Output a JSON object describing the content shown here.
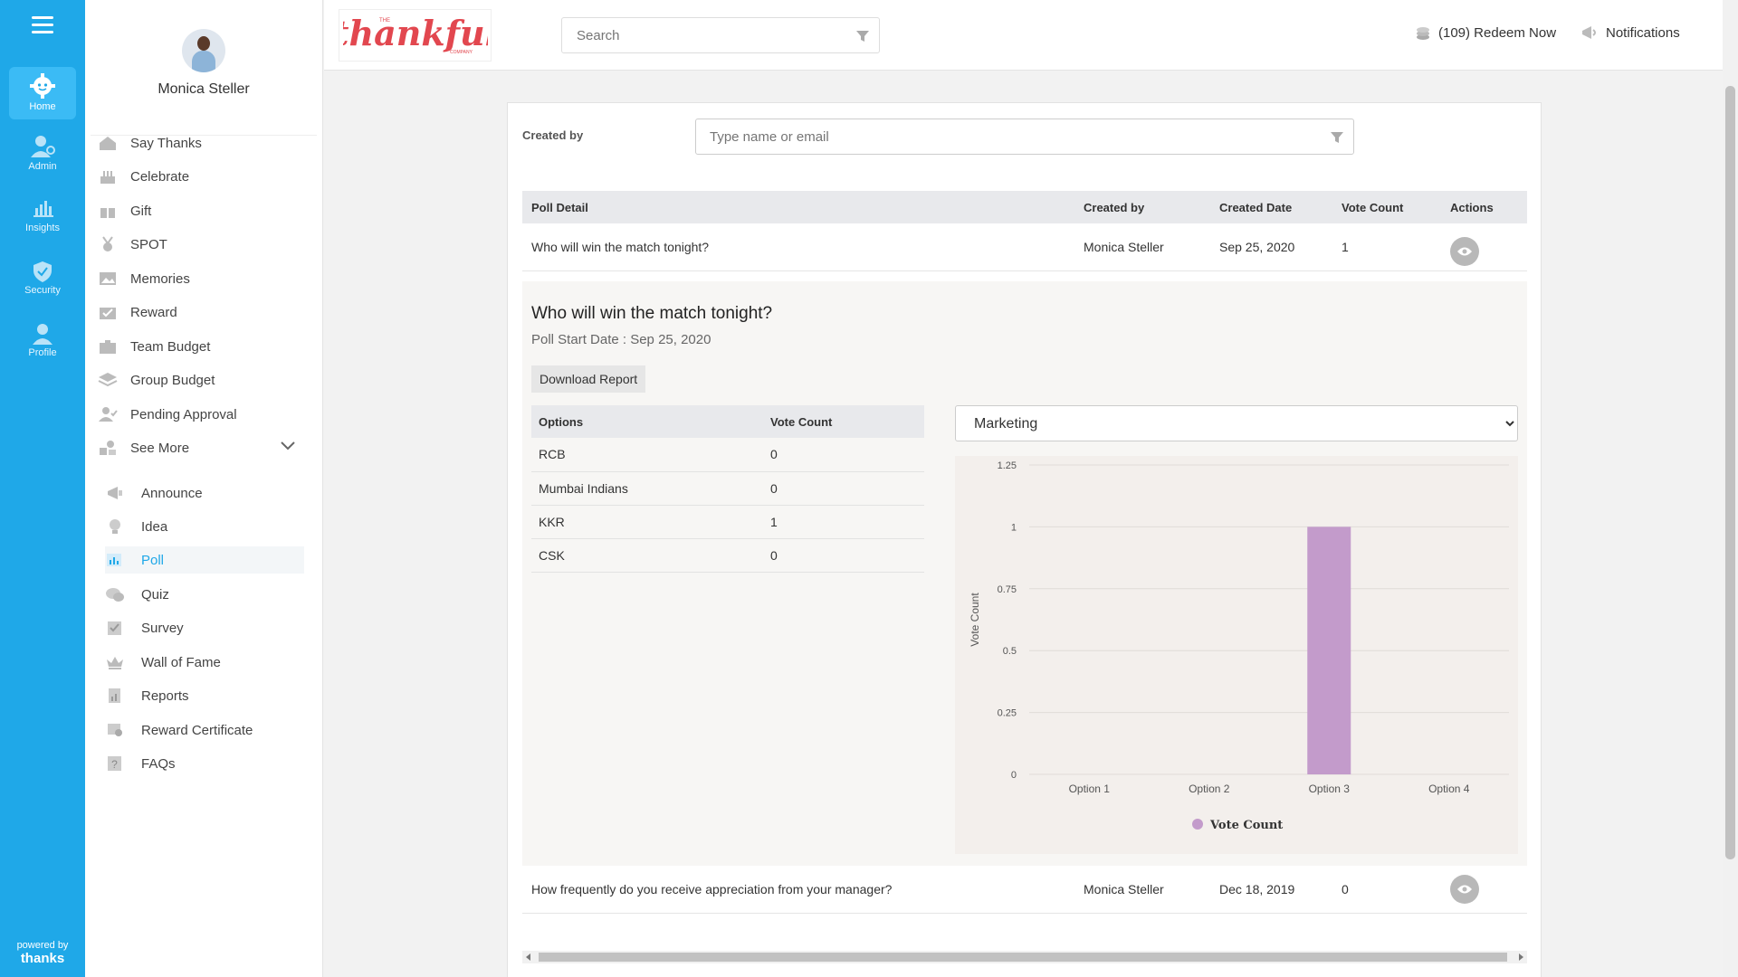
{
  "rail": {
    "items": [
      {
        "label": "Home",
        "icon": "gear-icon"
      },
      {
        "label": "Admin",
        "icon": "admin-user-icon"
      },
      {
        "label": "Insights",
        "icon": "bar-chart-icon"
      },
      {
        "label": "Security",
        "icon": "shield-icon"
      },
      {
        "label": "Profile",
        "icon": "user-icon"
      }
    ],
    "powered_by": "powered by",
    "powered_brand": "thanks"
  },
  "profile": {
    "name": "Monica Steller"
  },
  "menu": {
    "items": [
      {
        "label": "Say Thanks",
        "icon": "home-icon"
      },
      {
        "label": "Celebrate",
        "icon": "cake-icon"
      },
      {
        "label": "Gift",
        "icon": "gift-icon"
      },
      {
        "label": "SPOT",
        "icon": "medal-icon"
      },
      {
        "label": "Memories",
        "icon": "image-icon"
      },
      {
        "label": "Reward",
        "icon": "reward-icon"
      },
      {
        "label": "Team Budget",
        "icon": "briefcase-icon"
      },
      {
        "label": "Group Budget",
        "icon": "layers-icon"
      },
      {
        "label": "Pending Approval",
        "icon": "user-check-icon"
      },
      {
        "label": "See More",
        "icon": "shapes-icon"
      }
    ],
    "sub_items": [
      {
        "label": "Announce",
        "icon": "megaphone-icon"
      },
      {
        "label": "Idea",
        "icon": "bulb-icon"
      },
      {
        "label": "Poll",
        "icon": "poll-icon"
      },
      {
        "label": "Quiz",
        "icon": "chat-icon"
      },
      {
        "label": "Survey",
        "icon": "checkbox-icon"
      },
      {
        "label": "Wall of Fame",
        "icon": "crown-icon"
      },
      {
        "label": "Reports",
        "icon": "report-icon"
      },
      {
        "label": "Reward Certificate",
        "icon": "certificate-icon"
      },
      {
        "label": "FAQs",
        "icon": "question-icon"
      }
    ]
  },
  "header": {
    "logo_text": "thankful",
    "logo_small_top": "THE",
    "logo_small_bottom": "COMPANY",
    "search_placeholder": "Search",
    "redeem_label": "(109) Redeem Now",
    "notifications_label": "Notifications"
  },
  "filter": {
    "created_by_label": "Created by",
    "created_by_placeholder": "Type name or email"
  },
  "polls_table": {
    "headers": [
      "Poll Detail",
      "Created by",
      "Created Date",
      "Vote Count",
      "Actions"
    ],
    "rows": [
      {
        "detail": "Who will win the match tonight?",
        "created_by": "Monica Steller",
        "date": "Sep 25, 2020",
        "votes": "1"
      },
      {
        "detail": "How frequently do you receive appreciation from your manager?",
        "created_by": "Monica Steller",
        "date": "Dec 18, 2019",
        "votes": "0"
      }
    ]
  },
  "poll_detail": {
    "title": "Who will win the match tonight?",
    "start_date": "Poll Start Date : Sep 25, 2020",
    "download_label": "Download Report",
    "options_headers": [
      "Options",
      "Vote Count"
    ],
    "options": [
      {
        "name": "RCB",
        "votes": "0"
      },
      {
        "name": "Mumbai Indians",
        "votes": "0"
      },
      {
        "name": "KKR",
        "votes": "1"
      },
      {
        "name": "CSK",
        "votes": "0"
      }
    ],
    "department": "Marketing"
  },
  "chart_data": {
    "type": "bar",
    "categories": [
      "Option 1",
      "Option 2",
      "Option 3",
      "Option 4"
    ],
    "series": [
      {
        "name": "Vote Count",
        "values": [
          0,
          0,
          1,
          0
        ],
        "color": "#c39bcb"
      }
    ],
    "ylabel": "Vote Count",
    "ylim": [
      0,
      1.25
    ],
    "yticks": [
      "0",
      "0.25",
      "0.5",
      "0.75",
      "1",
      "1.25"
    ],
    "grid": true,
    "legend": "bottom"
  },
  "colors": {
    "accent": "#1fa8e8",
    "brand": "#e2474f",
    "bar": "#c39bcb"
  }
}
